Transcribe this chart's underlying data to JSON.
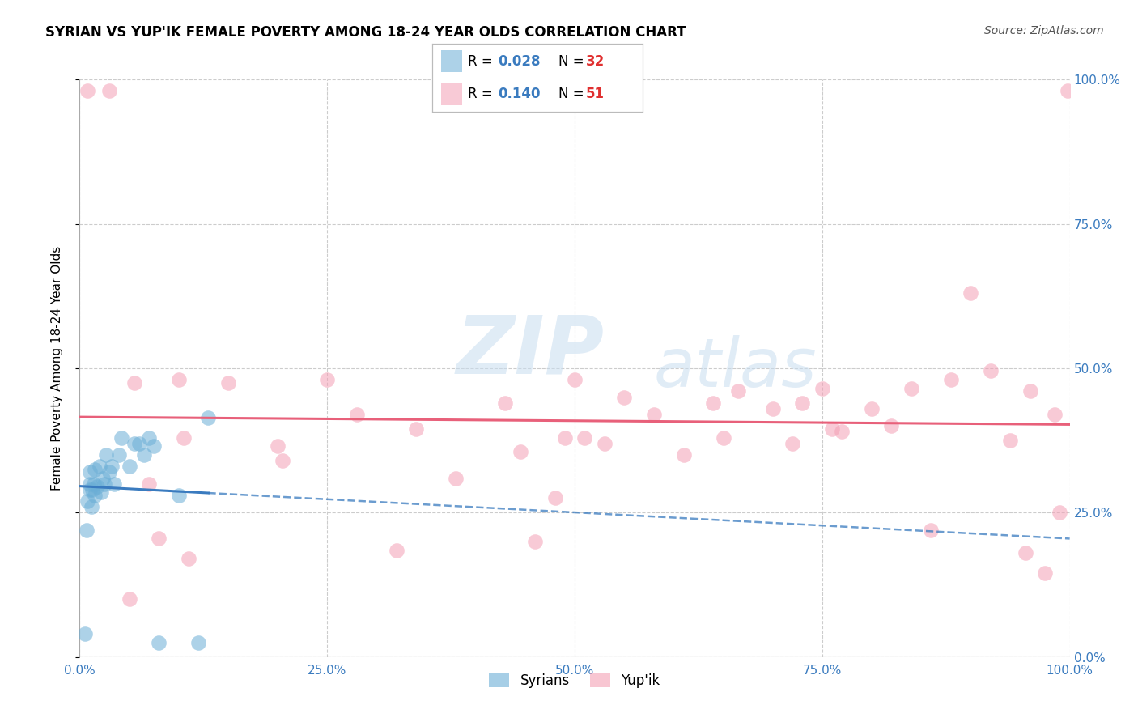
{
  "title": "SYRIAN VS YUP'IK FEMALE POVERTY AMONG 18-24 YEAR OLDS CORRELATION CHART",
  "source": "Source: ZipAtlas.com",
  "ylabel": "Female Poverty Among 18-24 Year Olds",
  "xlim": [
    0.0,
    1.0
  ],
  "ylim": [
    0.0,
    1.0
  ],
  "xticks": [
    0.0,
    0.25,
    0.5,
    0.75,
    1.0
  ],
  "yticks": [
    0.0,
    0.25,
    0.5,
    0.75,
    1.0
  ],
  "xticklabels": [
    "0.0%",
    "25.0%",
    "50.0%",
    "75.0%",
    "100.0%"
  ],
  "yticklabels_right": [
    "0.0%",
    "25.0%",
    "50.0%",
    "75.0%",
    "100.0%"
  ],
  "watermark_line1": "ZIP",
  "watermark_line2": "atlas",
  "background_color": "#ffffff",
  "grid_color": "#cccccc",
  "syrians_color": "#6baed6",
  "yupik_color": "#f4a0b5",
  "syrians_line_color": "#3a7bbf",
  "yupik_line_color": "#e8607a",
  "legend_r_color": "#3a7bbf",
  "legend_n_color": "#e03030",
  "syrians_R": "0.028",
  "syrians_N": "32",
  "yupik_R": "0.140",
  "yupik_N": "51",
  "syrians_x": [
    0.005,
    0.007,
    0.008,
    0.01,
    0.01,
    0.01,
    0.012,
    0.013,
    0.014,
    0.015,
    0.015,
    0.018,
    0.02,
    0.022,
    0.023,
    0.025,
    0.027,
    0.03,
    0.032,
    0.035,
    0.04,
    0.042,
    0.05,
    0.055,
    0.06,
    0.065,
    0.07,
    0.075,
    0.08,
    0.1,
    0.12,
    0.13
  ],
  "syrians_y": [
    0.04,
    0.22,
    0.27,
    0.29,
    0.3,
    0.32,
    0.26,
    0.29,
    0.3,
    0.28,
    0.325,
    0.295,
    0.33,
    0.285,
    0.31,
    0.3,
    0.35,
    0.32,
    0.33,
    0.3,
    0.35,
    0.38,
    0.33,
    0.37,
    0.37,
    0.35,
    0.38,
    0.365,
    0.025,
    0.28,
    0.025,
    0.415
  ],
  "yupik_x": [
    0.008,
    0.03,
    0.05,
    0.055,
    0.07,
    0.08,
    0.1,
    0.105,
    0.11,
    0.15,
    0.2,
    0.205,
    0.25,
    0.28,
    0.32,
    0.34,
    0.38,
    0.43,
    0.445,
    0.46,
    0.48,
    0.49,
    0.5,
    0.51,
    0.53,
    0.55,
    0.58,
    0.61,
    0.64,
    0.65,
    0.665,
    0.7,
    0.72,
    0.73,
    0.75,
    0.76,
    0.77,
    0.8,
    0.82,
    0.84,
    0.86,
    0.88,
    0.9,
    0.92,
    0.94,
    0.955,
    0.96,
    0.975,
    0.985,
    0.99,
    0.998
  ],
  "yupik_y": [
    0.98,
    0.98,
    0.1,
    0.475,
    0.3,
    0.205,
    0.48,
    0.38,
    0.17,
    0.475,
    0.365,
    0.34,
    0.48,
    0.42,
    0.185,
    0.395,
    0.31,
    0.44,
    0.355,
    0.2,
    0.275,
    0.38,
    0.48,
    0.38,
    0.37,
    0.45,
    0.42,
    0.35,
    0.44,
    0.38,
    0.46,
    0.43,
    0.37,
    0.44,
    0.465,
    0.395,
    0.39,
    0.43,
    0.4,
    0.465,
    0.22,
    0.48,
    0.63,
    0.495,
    0.375,
    0.18,
    0.46,
    0.145,
    0.42,
    0.25,
    0.98
  ]
}
